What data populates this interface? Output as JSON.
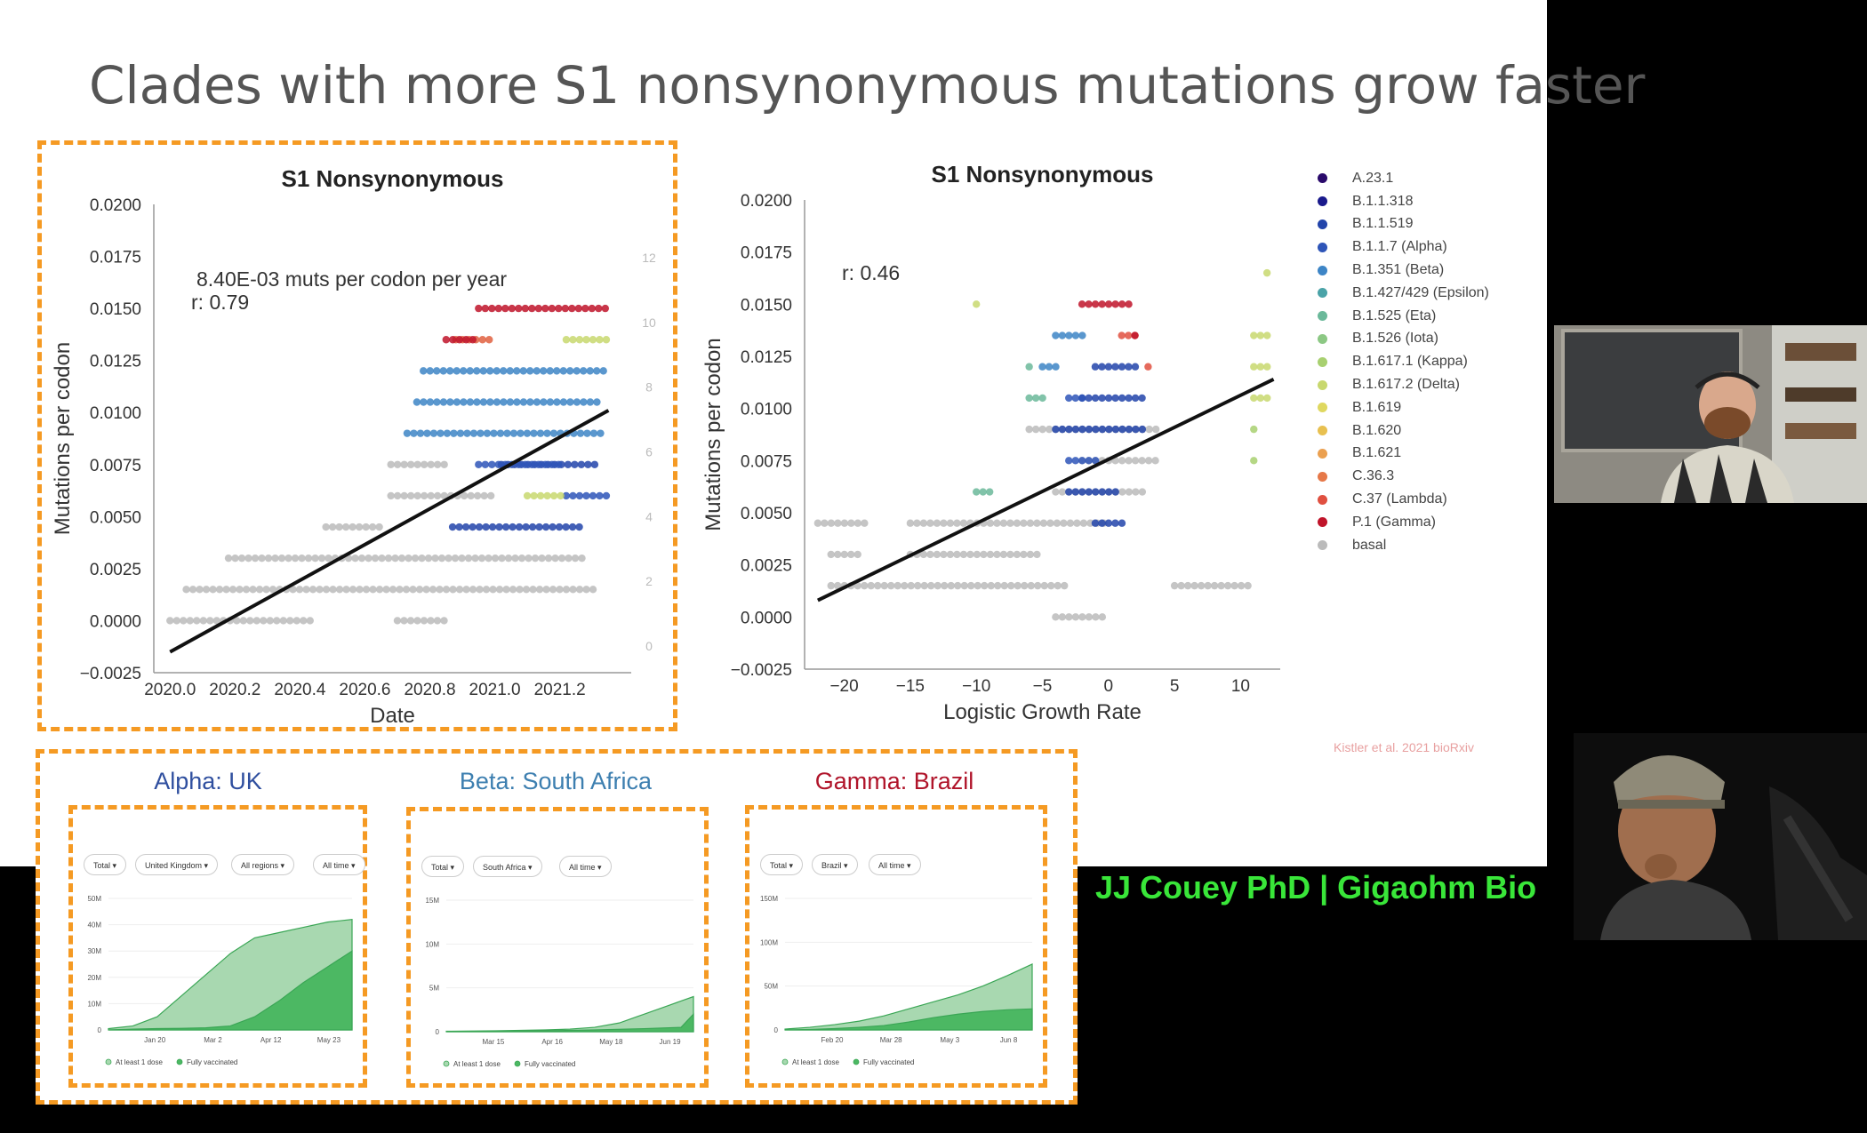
{
  "slide_title": "Clades with more S1 nonsynonymous mutations grow faster",
  "citation": "Kistler et al. 2021 bioRxiv",
  "lower_third": "JJ Couey PhD | Gigaohm Bio",
  "chart_data": [
    {
      "type": "scatter",
      "title": "S1 Nonsynonymous",
      "xlabel": "Date",
      "ylabel": "Mutations per codon",
      "annotation_line1": "8.40E-03 muts per codon per year",
      "annotation_line2": "r: 0.79",
      "xlim": [
        2019.95,
        2021.42
      ],
      "ylim": [
        -0.0025,
        0.02
      ],
      "x_ticks": [
        "2020.0",
        "2020.2",
        "2020.4",
        "2020.6",
        "2020.8",
        "2021.0",
        "2021.2"
      ],
      "y_ticks": [
        "0.0200",
        "0.0175",
        "0.0150",
        "0.0125",
        "0.0100",
        "0.0075",
        "0.0050",
        "0.0025",
        "0.0000",
        "−0.0025"
      ],
      "right_ticks": [
        "12",
        "10",
        "8",
        "6",
        "4",
        "2",
        "0"
      ],
      "regression": {
        "x": [
          2020.0,
          2021.35
        ],
        "y": [
          -0.0015,
          0.0101
        ]
      },
      "series": [
        {
          "name": "basal",
          "color": "#bbbbbb",
          "bands": [
            {
              "y": 0.0,
              "x": [
                2020.0,
                2020.45
              ]
            },
            {
              "y": 0.0,
              "x": [
                2020.7,
                2020.85
              ]
            },
            {
              "y": 0.0015,
              "x": [
                2020.05,
                2021.32
              ]
            },
            {
              "y": 0.003,
              "x": [
                2020.18,
                2021.27
              ]
            },
            {
              "y": 0.0045,
              "x": [
                2020.48,
                2020.65
              ]
            },
            {
              "y": 0.006,
              "x": [
                2020.68,
                2021.0
              ]
            },
            {
              "y": 0.0075,
              "x": [
                2020.68,
                2020.85
              ]
            }
          ]
        },
        {
          "name": "B.1.1.519",
          "color": "#2244aa",
          "bands": [
            {
              "y": 0.0045,
              "x": [
                2020.87,
                2021.27
              ]
            },
            {
              "y": 0.0075,
              "x": [
                2021.02,
                2021.32
              ]
            }
          ]
        },
        {
          "name": "B.1.1.7 (Alpha)",
          "color": "#2e55b8",
          "bands": [
            {
              "y": 0.0075,
              "x": [
                2020.95,
                2021.2
              ]
            },
            {
              "y": 0.006,
              "x": [
                2021.22,
                2021.35
              ]
            }
          ]
        },
        {
          "name": "B.1.351 (Beta)",
          "color": "#3d85c6",
          "bands": [
            {
              "y": 0.009,
              "x": [
                2020.73,
                2021.34
              ]
            },
            {
              "y": 0.012,
              "x": [
                2020.78,
                2021.34
              ]
            },
            {
              "y": 0.0105,
              "x": [
                2020.76,
                2021.32
              ]
            }
          ]
        },
        {
          "name": "B.1.617.2 (Delta)",
          "color": "#c8d86e",
          "bands": [
            {
              "y": 0.0135,
              "x": [
                2021.22,
                2021.35
              ]
            },
            {
              "y": 0.006,
              "x": [
                2021.1,
                2021.22
              ]
            }
          ]
        },
        {
          "name": "C.37 (Lambda)",
          "color": "#e06040",
          "bands": [
            {
              "y": 0.0135,
              "x": [
                2020.88,
                2021.0
              ]
            }
          ]
        },
        {
          "name": "P.1 (Gamma)",
          "color": "#c0142a",
          "bands": [
            {
              "y": 0.015,
              "x": [
                2020.95,
                2021.35
              ]
            },
            {
              "y": 0.0135,
              "x": [
                2020.85,
                2020.95
              ]
            }
          ]
        }
      ]
    },
    {
      "type": "scatter",
      "title": "S1 Nonsynonymous",
      "xlabel": "Logistic Growth Rate",
      "ylabel": "Mutations per codon",
      "annotation_line1": "r: 0.46",
      "xlim": [
        -23,
        13
      ],
      "ylim": [
        -0.0025,
        0.02
      ],
      "x_ticks": [
        "−20",
        "−15",
        "−10",
        "−5",
        "0",
        "5",
        "10"
      ],
      "x_tick_values": [
        -20,
        -15,
        -10,
        -5,
        0,
        5,
        10
      ],
      "y_ticks": [
        "0.0200",
        "0.0175",
        "0.0150",
        "0.0125",
        "0.0100",
        "0.0075",
        "0.0050",
        "0.0025",
        "0.0000",
        "−0.0025"
      ],
      "regression": {
        "x": [
          -22,
          12.5
        ],
        "y": [
          0.0008,
          0.0114
        ]
      },
      "legend": [
        {
          "name": "A.23.1",
          "color": "#2a0a6b"
        },
        {
          "name": "B.1.1.318",
          "color": "#1a1a8c"
        },
        {
          "name": "B.1.1.519",
          "color": "#2244aa"
        },
        {
          "name": "B.1.1.7 (Alpha)",
          "color": "#2e55b8"
        },
        {
          "name": "B.1.351 (Beta)",
          "color": "#3d85c6"
        },
        {
          "name": "B.1.427/429 (Epsilon)",
          "color": "#4aa3a8"
        },
        {
          "name": "B.1.525 (Eta)",
          "color": "#6bb99a"
        },
        {
          "name": "B.1.526 (Iota)",
          "color": "#8cc884"
        },
        {
          "name": "B.1.617.1 (Kappa)",
          "color": "#a8d070"
        },
        {
          "name": "B.1.617.2 (Delta)",
          "color": "#c8d86e"
        },
        {
          "name": "B.1.619",
          "color": "#dfd860"
        },
        {
          "name": "B.1.620",
          "color": "#e8c050"
        },
        {
          "name": "B.1.621",
          "color": "#eba050"
        },
        {
          "name": "C.36.3",
          "color": "#e67848"
        },
        {
          "name": "C.37 (Lambda)",
          "color": "#e05040"
        },
        {
          "name": "P.1 (Gamma)",
          "color": "#c0142a"
        },
        {
          "name": "basal",
          "color": "#bbbbbb"
        }
      ],
      "series": [
        {
          "name": "basal",
          "color": "#bbbbbb",
          "bands": [
            {
              "y": 0.0015,
              "x": [
                -21,
                -3
              ]
            },
            {
              "y": 0.0015,
              "x": [
                5,
                11
              ]
            },
            {
              "y": 0.003,
              "x": [
                -21,
                -19
              ]
            },
            {
              "y": 0.003,
              "x": [
                -15,
                -5
              ]
            },
            {
              "y": 0.0045,
              "x": [
                -22,
                -18
              ]
            },
            {
              "y": 0.0045,
              "x": [
                -15,
                0
              ]
            },
            {
              "y": 0.0,
              "x": [
                -4,
                0
              ]
            },
            {
              "y": 0.006,
              "x": [
                -4,
                3
              ]
            },
            {
              "y": 0.0075,
              "x": [
                -2,
                4
              ]
            },
            {
              "y": 0.009,
              "x": [
                -6,
                4
              ]
            }
          ]
        },
        {
          "name": "B.1.1.519",
          "color": "#2244aa",
          "bands": [
            {
              "y": 0.0045,
              "x": [
                -1,
                1
              ]
            },
            {
              "y": 0.006,
              "x": [
                -3,
                1
              ]
            },
            {
              "y": 0.009,
              "x": [
                -4,
                3
              ]
            },
            {
              "y": 0.0105,
              "x": [
                -2,
                3
              ]
            },
            {
              "y": 0.012,
              "x": [
                -1,
                2
              ]
            }
          ]
        },
        {
          "name": "B.1.351 (Beta)",
          "color": "#3d85c6",
          "bands": [
            {
              "y": 0.0135,
              "x": [
                -4,
                -2
              ]
            },
            {
              "y": 0.012,
              "x": [
                -5,
                -4
              ]
            }
          ]
        },
        {
          "name": "B.1.1.7 (Alpha)",
          "color": "#2e55b8",
          "bands": [
            {
              "y": 0.0075,
              "x": [
                -3,
                -1
              ]
            },
            {
              "y": 0.0105,
              "x": [
                -3,
                -2
              ]
            }
          ]
        },
        {
          "name": "B.1.525 (Eta)",
          "color": "#6bb99a",
          "bands": [
            {
              "y": 0.0105,
              "x": [
                -6,
                -5
              ]
            },
            {
              "y": 0.012,
              "x": [
                -6,
                -6
              ]
            },
            {
              "y": 0.006,
              "x": [
                -10,
                -9
              ]
            }
          ]
        },
        {
          "name": "B.1.617.2 (Delta)",
          "color": "#c8d86e",
          "bands": [
            {
              "y": 0.012,
              "x": [
                11,
                12
              ]
            },
            {
              "y": 0.0105,
              "x": [
                11,
                12
              ]
            },
            {
              "y": 0.0135,
              "x": [
                11,
                12
              ]
            },
            {
              "y": 0.015,
              "x": [
                -10,
                -10
              ]
            },
            {
              "y": 0.0165,
              "x": [
                12,
                12
              ]
            }
          ]
        },
        {
          "name": "B.1.617.1 (Kappa)",
          "color": "#a8d070",
          "bands": [
            {
              "y": 0.009,
              "x": [
                11,
                11
              ]
            },
            {
              "y": 0.0075,
              "x": [
                11,
                11
              ]
            }
          ]
        },
        {
          "name": "C.37 (Lambda)",
          "color": "#e05040",
          "bands": [
            {
              "y": 0.012,
              "x": [
                3,
                3
              ]
            },
            {
              "y": 0.0135,
              "x": [
                1,
                2
              ]
            }
          ]
        },
        {
          "name": "P.1 (Gamma)",
          "color": "#c0142a",
          "bands": [
            {
              "y": 0.015,
              "x": [
                -2,
                2
              ]
            },
            {
              "y": 0.0135,
              "x": [
                2,
                2
              ]
            }
          ]
        }
      ]
    },
    {
      "type": "area",
      "title": "Alpha: UK",
      "title_color": "#2f4f9f",
      "controls": [
        "Total",
        "United Kingdom",
        "All regions",
        "All time"
      ],
      "y_ticks": [
        "50M",
        "40M",
        "30M",
        "20M",
        "10M",
        "0"
      ],
      "ylim": [
        0,
        50
      ],
      "x_ticks": [
        "Jan 20",
        "Mar 2",
        "Apr 12",
        "May 23"
      ],
      "legend": [
        "At least 1 dose",
        "Fully vaccinated"
      ],
      "series": [
        {
          "name": "At least 1 dose",
          "color": "#a8d8b0",
          "x": [
            0,
            0.1,
            0.2,
            0.3,
            0.4,
            0.5,
            0.6,
            0.7,
            0.8,
            0.9,
            1.0
          ],
          "values": [
            0.5,
            1.5,
            5,
            13,
            21,
            29,
            35,
            37,
            39,
            41,
            42
          ]
        },
        {
          "name": "Fully vaccinated",
          "color": "#4cb863",
          "x": [
            0,
            0.1,
            0.2,
            0.3,
            0.4,
            0.5,
            0.6,
            0.7,
            0.8,
            0.9,
            1.0
          ],
          "values": [
            0,
            0.3,
            0.5,
            0.6,
            0.8,
            1.5,
            5,
            11,
            18,
            24,
            30
          ]
        }
      ]
    },
    {
      "type": "area",
      "title": "Beta: South Africa",
      "title_color": "#3d7fb0",
      "controls": [
        "Total",
        "South Africa",
        "All time"
      ],
      "y_ticks": [
        "15M",
        "10M",
        "5M",
        "0"
      ],
      "ylim": [
        0,
        15
      ],
      "x_ticks": [
        "Mar 15",
        "Apr 16",
        "May 18",
        "Jun 19"
      ],
      "legend": [
        "At least 1 dose",
        "Fully vaccinated"
      ],
      "series": [
        {
          "name": "At least 1 dose",
          "color": "#a8d8b0",
          "x": [
            0,
            0.2,
            0.4,
            0.5,
            0.6,
            0.7,
            0.8,
            0.9,
            1.0
          ],
          "values": [
            0.05,
            0.1,
            0.2,
            0.3,
            0.5,
            1.0,
            2.0,
            3.0,
            4.0
          ]
        },
        {
          "name": "Fully vaccinated",
          "color": "#4cb863",
          "x": [
            0,
            0.2,
            0.4,
            0.6,
            0.8,
            0.95,
            1.0
          ],
          "values": [
            0,
            0.05,
            0.1,
            0.2,
            0.35,
            0.5,
            2.0
          ]
        }
      ]
    },
    {
      "type": "area",
      "title": "Gamma: Brazil",
      "title_color": "#b0142a",
      "controls": [
        "Total",
        "Brazil",
        "All time"
      ],
      "y_ticks": [
        "150M",
        "100M",
        "50M",
        "0"
      ],
      "ylim": [
        0,
        150
      ],
      "x_ticks": [
        "Feb 20",
        "Mar 28",
        "May 3",
        "Jun 8"
      ],
      "legend": [
        "At least 1 dose",
        "Fully vaccinated"
      ],
      "series": [
        {
          "name": "At least 1 dose",
          "color": "#a8d8b0",
          "x": [
            0,
            0.1,
            0.2,
            0.3,
            0.4,
            0.5,
            0.6,
            0.7,
            0.8,
            0.9,
            1.0
          ],
          "values": [
            1,
            3,
            6,
            10,
            16,
            24,
            32,
            40,
            50,
            62,
            75
          ]
        },
        {
          "name": "Fully vaccinated",
          "color": "#4cb863",
          "x": [
            0,
            0.1,
            0.2,
            0.3,
            0.4,
            0.5,
            0.6,
            0.7,
            0.8,
            0.9,
            1.0
          ],
          "values": [
            0,
            0.5,
            1.5,
            3,
            5,
            9,
            14,
            18,
            21,
            23,
            24
          ]
        }
      ]
    }
  ]
}
